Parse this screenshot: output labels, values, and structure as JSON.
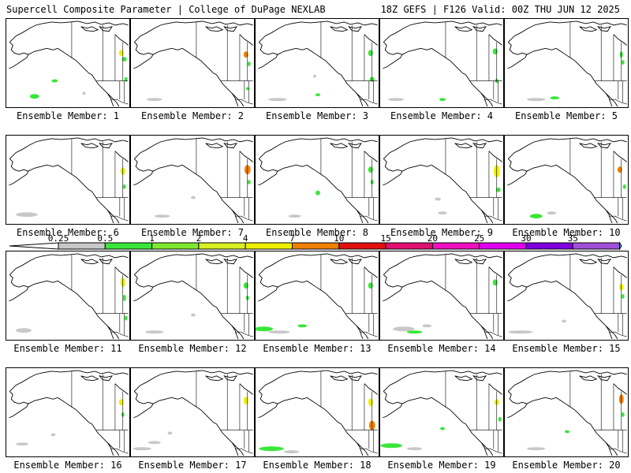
{
  "header": {
    "left": "Supercell Composite Parameter | College of DuPage NEXLAB",
    "right": "18Z GEFS | F126 Valid: 00Z THU JUN 12 2025"
  },
  "panels": [
    {
      "member": "1",
      "label": "Ensemble Member: 1"
    },
    {
      "member": "2",
      "label": "Ensemble Member: 2"
    },
    {
      "member": "3",
      "label": "Ensemble Member: 3"
    },
    {
      "member": "4",
      "label": "Ensemble Member: 4"
    },
    {
      "member": "5",
      "label": "Ensemble Member: 5"
    },
    {
      "member": "6",
      "label": "Ensemble Member: 6"
    },
    {
      "member": "7",
      "label": "Ensemble Member: 7"
    },
    {
      "member": "8",
      "label": "Ensemble Member: 8"
    },
    {
      "member": "9",
      "label": "Ensemble Member: 9"
    },
    {
      "member": "10",
      "label": "Ensemble Member: 10"
    },
    {
      "member": "11",
      "label": "Ensemble Member: 11"
    },
    {
      "member": "12",
      "label": "Ensemble Member: 12"
    },
    {
      "member": "13",
      "label": "Ensemble Member: 13"
    },
    {
      "member": "14",
      "label": "Ensemble Member: 14"
    },
    {
      "member": "15",
      "label": "Ensemble Member: 15"
    },
    {
      "member": "16",
      "label": "Ensemble Member: 16"
    },
    {
      "member": "17",
      "label": "Ensemble Member: 17"
    },
    {
      "member": "18",
      "label": "Ensemble Member: 18"
    },
    {
      "member": "19",
      "label": "Ensemble Member: 19"
    },
    {
      "member": "20",
      "label": "Ensemble Member: 20"
    }
  ],
  "colorbar": {
    "ticks": [
      "0.25",
      "0.5",
      "1",
      "2",
      "4",
      "7",
      "10",
      "15",
      "20",
      "25",
      "30",
      "35"
    ],
    "colors": [
      "#c8c8c8",
      "#39e639",
      "#80e830",
      "#d8f020",
      "#f0f000",
      "#f08000",
      "#e01010",
      "#e01070",
      "#f010c0",
      "#e000f0",
      "#8000e0",
      "#a050d8",
      "#40e0f0"
    ],
    "left_cap_color": "#ffffff"
  },
  "colors": {
    "coast": "#000000",
    "border": "#000000",
    "low": "#c8c8c8",
    "mid": "#39e639",
    "high": "#f0f000",
    "hot": "#f08000"
  }
}
